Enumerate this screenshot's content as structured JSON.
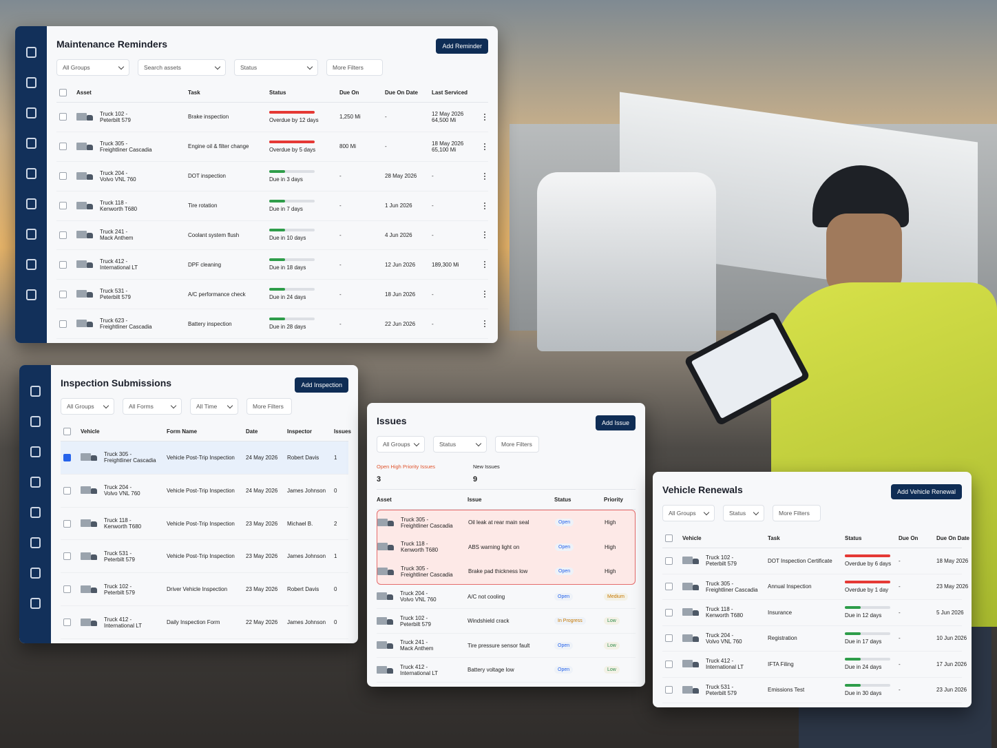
{
  "maintenance": {
    "title": "Maintenance Reminders",
    "button": "Add Reminder",
    "filters": [
      "All Groups",
      "Search assets",
      "Status",
      "More Filters"
    ],
    "columns": [
      "Asset",
      "Task",
      "Status",
      "Due On",
      "Due On Date",
      "Last Serviced"
    ],
    "rows": [
      {
        "asset": [
          "Truck 102 -",
          "Peterbilt 579"
        ],
        "task": "Brake inspection",
        "status": "Overdue by 12 days",
        "bar_track": "#e53935",
        "bar_fill": "#e53935",
        "due_on": "1,250 Mi",
        "due_date": "-",
        "last": [
          "12 May 2026",
          "64,500 Mi"
        ]
      },
      {
        "asset": [
          "Truck 305 -",
          "Freightliner Cascadia"
        ],
        "task": "Engine oil & filter change",
        "status": "Overdue by 5 days",
        "bar_track": "#e53935",
        "bar_fill": "#e53935",
        "due_on": "800 Mi",
        "due_date": "-",
        "last": [
          "18 May 2026",
          "65,100 Mi"
        ]
      },
      {
        "asset": [
          "Truck 204 -",
          "Volvo VNL 760"
        ],
        "task": "DOT inspection",
        "status": "Due in 3 days",
        "bar_track": "#dcdfe4",
        "bar_fill": "#2e9d4a",
        "due_on": "-",
        "due_date": "28 May 2026",
        "last": [
          "-"
        ]
      },
      {
        "asset": [
          "Truck 118 -",
          "Kenworth T680"
        ],
        "task": "Tire rotation",
        "status": "Due in 7 days",
        "bar_track": "#dcdfe4",
        "bar_fill": "#2e9d4a",
        "due_on": "-",
        "due_date": "1 Jun 2026",
        "last": [
          "-"
        ]
      },
      {
        "asset": [
          "Truck 241 -",
          "Mack Anthem"
        ],
        "task": "Coolant system flush",
        "status": "Due in 10 days",
        "bar_track": "#dcdfe4",
        "bar_fill": "#2e9d4a",
        "due_on": "-",
        "due_date": "4 Jun 2026",
        "last": [
          "-"
        ]
      },
      {
        "asset": [
          "Truck 412 -",
          "International LT"
        ],
        "task": "DPF cleaning",
        "status": "Due in 18 days",
        "bar_track": "#dcdfe4",
        "bar_fill": "#2e9d4a",
        "due_on": "-",
        "due_date": "12 Jun 2026",
        "last": [
          "189,300 Mi"
        ]
      },
      {
        "asset": [
          "Truck 531 -",
          "Peterbilt 579"
        ],
        "task": "A/C performance check",
        "status": "Due in 24 days",
        "bar_track": "#dcdfe4",
        "bar_fill": "#2e9d4a",
        "due_on": "-",
        "due_date": "18 Jun 2026",
        "last": [
          "-"
        ]
      },
      {
        "asset": [
          "Truck 623 -",
          "Freightliner Cascadia"
        ],
        "task": "Battery inspection",
        "status": "Due in 28 days",
        "bar_track": "#dcdfe4",
        "bar_fill": "#2e9d4a",
        "due_on": "-",
        "due_date": "22 Jun 2026",
        "last": [
          "-"
        ]
      }
    ]
  },
  "inspections": {
    "title": "Inspection Submissions",
    "button": "Add Inspection",
    "filters": [
      "All Groups",
      "All Forms",
      "All Time",
      "More Filters"
    ],
    "columns": [
      "Vehicle",
      "Form Name",
      "Date",
      "Inspector",
      "Issues"
    ],
    "rows": [
      {
        "asset": [
          "Truck 305 -",
          "Freightliner Cascadia"
        ],
        "form": "Vehicle Post-Trip Inspection",
        "date": "24 May 2026",
        "inspector": "Robert Davis",
        "issues": 1,
        "checked": true
      },
      {
        "asset": [
          "Truck 204 -",
          "Volvo VNL 760"
        ],
        "form": "Vehicle Post-Trip Inspection",
        "date": "24 May 2026",
        "inspector": "James Johnson",
        "issues": 0
      },
      {
        "asset": [
          "Truck 118 -",
          "Kenworth T680"
        ],
        "form": "Vehicle Post-Trip Inspection",
        "date": "23 May 2026",
        "inspector": "Michael B.",
        "issues": 2
      },
      {
        "asset": [
          "Truck 531 -",
          "Peterbilt 579"
        ],
        "form": "Vehicle Post-Trip Inspection",
        "date": "23 May 2026",
        "inspector": "James Johnson",
        "issues": 1
      },
      {
        "asset": [
          "Truck 102 -",
          "Peterbilt 579"
        ],
        "form": "Driver Vehicle Inspection",
        "date": "23 May 2026",
        "inspector": "Robert Davis",
        "issues": 0
      },
      {
        "asset": [
          "Truck 412 -",
          "International LT"
        ],
        "form": "Daily Inspection Form",
        "date": "22 May 2026",
        "inspector": "James Johnson",
        "issues": 0
      }
    ]
  },
  "issues": {
    "title": "Issues",
    "button": "Add Issue",
    "filters": [
      "All Groups",
      "Status",
      "More Filters"
    ],
    "stats": [
      {
        "label": "Open High Priority Issues",
        "value": 3,
        "color": "#e0562f"
      },
      {
        "label": "New Issues",
        "value": 9,
        "color": "#222222"
      }
    ],
    "columns": [
      "Asset",
      "Issue",
      "Status",
      "Priority"
    ],
    "flagged_rows": [
      {
        "asset": [
          "Truck 305 -",
          "Freightliner Cascadia"
        ],
        "issue": "Oil leak at rear main seal",
        "status": "Open",
        "status_color": "#2563eb",
        "priority": "High"
      },
      {
        "asset": [
          "Truck 118 -",
          "Kenworth T680"
        ],
        "issue": "ABS warning light on",
        "status": "Open",
        "status_color": "#2563eb",
        "priority": "High"
      },
      {
        "asset": [
          "Truck 305 -",
          "Freightliner Cascadia"
        ],
        "issue": "Brake pad thickness low",
        "status": "Open",
        "status_color": "#2563eb",
        "priority": "High"
      }
    ],
    "rows": [
      {
        "asset": [
          "Truck 204 -",
          "Volvo VNL 760"
        ],
        "issue": "A/C not cooling",
        "status": "Open",
        "status_color": "#2563eb",
        "priority": "Medium",
        "priority_color": "#c77800"
      },
      {
        "asset": [
          "Truck 102 -",
          "Peterbilt 579"
        ],
        "issue": "Windshield crack",
        "status": "In Progress",
        "status_color": "#c77800",
        "priority": "Low",
        "priority_color": "#2e8b4a"
      },
      {
        "asset": [
          "Truck 241 -",
          "Mack Anthem"
        ],
        "issue": "Tire pressure sensor fault",
        "status": "Open",
        "status_color": "#2563eb",
        "priority": "Low",
        "priority_color": "#2e8b4a"
      },
      {
        "asset": [
          "Truck 412 -",
          "International LT"
        ],
        "issue": "Battery voltage low",
        "status": "Open",
        "status_color": "#2563eb",
        "priority": "Low",
        "priority_color": "#2e8b4a"
      }
    ]
  },
  "renewals": {
    "title": "Vehicle Renewals",
    "button": "Add Vehicle Renewal",
    "filters": [
      "All Groups",
      "Status",
      "More Filters"
    ],
    "columns": [
      "Vehicle",
      "Task",
      "Status",
      "Due On",
      "Due On Date"
    ],
    "rows": [
      {
        "asset": [
          "Truck 102 -",
          "Peterbilt 579"
        ],
        "task": "DOT Inspection Certificate",
        "status": "Overdue by 6 days",
        "bar_track": "#e53935",
        "bar_fill": "#e53935",
        "due_on": "-",
        "due_date": "18 May 2026"
      },
      {
        "asset": [
          "Truck 305 -",
          "Freightliner Cascadia"
        ],
        "task": "Annual Inspection",
        "status": "Overdue by 1 day",
        "bar_track": "#e53935",
        "bar_fill": "#e53935",
        "due_on": "-",
        "due_date": "23 May 2026"
      },
      {
        "asset": [
          "Truck 118 -",
          "Kenworth T680"
        ],
        "task": "Insurance",
        "status": "Due in 12 days",
        "bar_track": "#dcdfe4",
        "bar_fill": "#2e9d4a",
        "due_on": "-",
        "due_date": "5 Jun 2026"
      },
      {
        "asset": [
          "Truck 204 -",
          "Volvo VNL 760"
        ],
        "task": "Registration",
        "status": "Due in 17 days",
        "bar_track": "#dcdfe4",
        "bar_fill": "#2e9d4a",
        "due_on": "-",
        "due_date": "10 Jun 2026"
      },
      {
        "asset": [
          "Truck 412 -",
          "International LT"
        ],
        "task": "IFTA Filing",
        "status": "Due in 24 days",
        "bar_track": "#dcdfe4",
        "bar_fill": "#2e9d4a",
        "due_on": "-",
        "due_date": "17 Jun 2026"
      },
      {
        "asset": [
          "Truck 531 -",
          "Peterbilt 579"
        ],
        "task": "Emissions Test",
        "status": "Due in 30 days",
        "bar_track": "#dcdfe4",
        "bar_fill": "#2e9d4a",
        "due_on": "-",
        "due_date": "23 Jun 2026"
      }
    ]
  }
}
